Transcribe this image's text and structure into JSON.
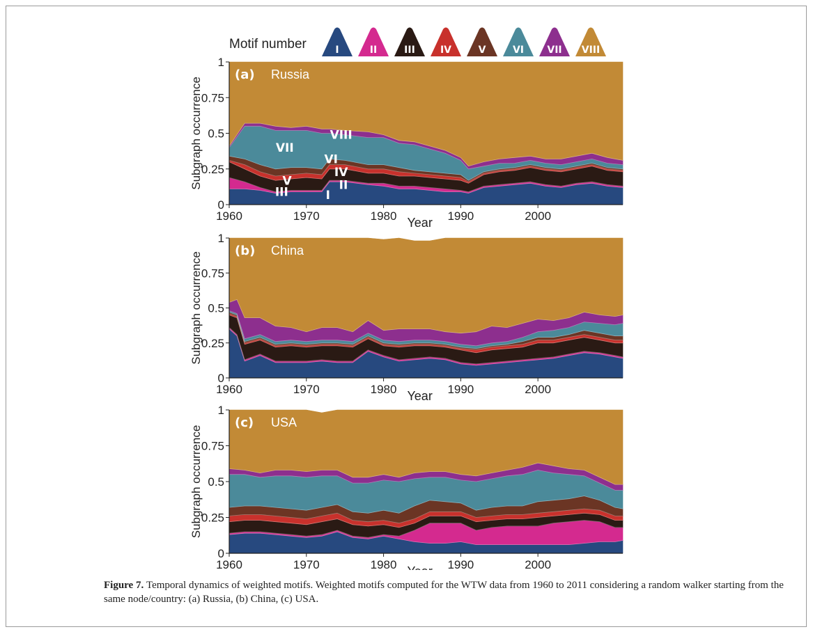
{
  "legend": {
    "title": "Motif number",
    "entries": [
      {
        "id": "I",
        "color": "#27497f"
      },
      {
        "id": "II",
        "color": "#d42a8f"
      },
      {
        "id": "III",
        "color": "#2a1a14"
      },
      {
        "id": "IV",
        "color": "#c8312c"
      },
      {
        "id": "V",
        "color": "#6b3524"
      },
      {
        "id": "VI",
        "color": "#4b8a9a"
      },
      {
        "id": "VII",
        "color": "#8d2f8e"
      },
      {
        "id": "VIII",
        "color": "#c28a36"
      }
    ]
  },
  "chart_data": [
    {
      "type": "area",
      "stacked": true,
      "panel_label": "(a)",
      "country": "Russia",
      "xlabel": "Year",
      "ylabel": "Subgraph occurrence",
      "xlim": [
        1960,
        2011
      ],
      "ylim": [
        0,
        1
      ],
      "xticks": [
        "1960",
        "1970",
        "1980",
        "1990",
        "2000"
      ],
      "yticks": [
        "0",
        "0.25",
        "0.5",
        "0.75",
        "1"
      ],
      "x": [
        1960,
        1962,
        1964,
        1966,
        1968,
        1970,
        1972,
        1973,
        1975,
        1978,
        1980,
        1982,
        1984,
        1986,
        1988,
        1990,
        1991,
        1993,
        1995,
        1997,
        1999,
        2001,
        2003,
        2005,
        2007,
        2009,
        2011
      ],
      "annotations": [
        "VIII",
        "VII",
        "VI",
        "IV",
        "V",
        "II",
        "III",
        "I"
      ],
      "series": [
        {
          "name": "I",
          "values": [
            0.11,
            0.11,
            0.1,
            0.08,
            0.09,
            0.09,
            0.09,
            0.16,
            0.16,
            0.14,
            0.13,
            0.11,
            0.11,
            0.1,
            0.09,
            0.09,
            0.08,
            0.12,
            0.13,
            0.14,
            0.15,
            0.13,
            0.12,
            0.14,
            0.15,
            0.13,
            0.12
          ]
        },
        {
          "name": "II",
          "values": [
            0.08,
            0.05,
            0.02,
            0.01,
            0.01,
            0.01,
            0.01,
            0.01,
            0.01,
            0.01,
            0.02,
            0.02,
            0.02,
            0.02,
            0.02,
            0.01,
            0.01,
            0.01,
            0.01,
            0.01,
            0.01,
            0.01,
            0.01,
            0.01,
            0.01,
            0.01,
            0.01
          ]
        },
        {
          "name": "III",
          "values": [
            0.11,
            0.09,
            0.08,
            0.08,
            0.08,
            0.09,
            0.08,
            0.08,
            0.08,
            0.07,
            0.07,
            0.07,
            0.07,
            0.07,
            0.07,
            0.07,
            0.06,
            0.08,
            0.09,
            0.09,
            0.1,
            0.1,
            0.1,
            0.1,
            0.11,
            0.1,
            0.1
          ]
        },
        {
          "name": "IV",
          "values": [
            0.01,
            0.03,
            0.03,
            0.03,
            0.03,
            0.03,
            0.03,
            0.03,
            0.03,
            0.03,
            0.03,
            0.03,
            0.02,
            0.02,
            0.02,
            0.02,
            0.01,
            0.01,
            0.01,
            0.01,
            0.01,
            0.01,
            0.01,
            0.01,
            0.01,
            0.01,
            0.01
          ]
        },
        {
          "name": "V",
          "values": [
            0.03,
            0.04,
            0.05,
            0.05,
            0.05,
            0.04,
            0.04,
            0.04,
            0.03,
            0.03,
            0.03,
            0.03,
            0.02,
            0.02,
            0.02,
            0.02,
            0.01,
            0.01,
            0.01,
            0.01,
            0.01,
            0.01,
            0.01,
            0.01,
            0.01,
            0.01,
            0.01
          ]
        },
        {
          "name": "VI",
          "values": [
            0.06,
            0.23,
            0.27,
            0.27,
            0.26,
            0.26,
            0.25,
            0.18,
            0.18,
            0.19,
            0.19,
            0.17,
            0.18,
            0.16,
            0.14,
            0.1,
            0.08,
            0.04,
            0.04,
            0.03,
            0.03,
            0.03,
            0.03,
            0.03,
            0.03,
            0.03,
            0.03
          ]
        },
        {
          "name": "VII",
          "values": [
            0.01,
            0.02,
            0.02,
            0.03,
            0.02,
            0.03,
            0.03,
            0.03,
            0.03,
            0.04,
            0.02,
            0.02,
            0.02,
            0.02,
            0.02,
            0.02,
            0.02,
            0.03,
            0.03,
            0.04,
            0.03,
            0.03,
            0.04,
            0.04,
            0.04,
            0.04,
            0.03
          ]
        },
        {
          "name": "VIII",
          "values": [
            0.59,
            0.43,
            0.43,
            0.45,
            0.46,
            0.45,
            0.47,
            0.47,
            0.48,
            0.49,
            0.51,
            0.55,
            0.56,
            0.59,
            0.62,
            0.67,
            0.73,
            0.7,
            0.68,
            0.67,
            0.66,
            0.68,
            0.68,
            0.66,
            0.64,
            0.67,
            0.69
          ]
        }
      ]
    },
    {
      "type": "area",
      "stacked": true,
      "panel_label": "(b)",
      "country": "China",
      "xlabel": "Year",
      "ylabel": "Subgraph occurrence",
      "xlim": [
        1960,
        2011
      ],
      "ylim": [
        0,
        1
      ],
      "xticks": [
        "1960",
        "1970",
        "1980",
        "1990",
        "2000"
      ],
      "yticks": [
        "0",
        "0.25",
        "0.5",
        "0.75",
        "1"
      ],
      "x": [
        1960,
        1961,
        1962,
        1964,
        1966,
        1968,
        1970,
        1972,
        1974,
        1976,
        1978,
        1980,
        1982,
        1984,
        1986,
        1988,
        1990,
        1992,
        1994,
        1996,
        1998,
        2000,
        2002,
        2004,
        2006,
        2008,
        2010,
        2011
      ],
      "series": [
        {
          "name": "I",
          "values": [
            0.35,
            0.3,
            0.12,
            0.16,
            0.11,
            0.11,
            0.11,
            0.12,
            0.11,
            0.11,
            0.19,
            0.15,
            0.12,
            0.13,
            0.14,
            0.13,
            0.1,
            0.09,
            0.1,
            0.11,
            0.12,
            0.13,
            0.14,
            0.16,
            0.18,
            0.17,
            0.15,
            0.14
          ]
        },
        {
          "name": "II",
          "values": [
            0.01,
            0.01,
            0.01,
            0.01,
            0.01,
            0.01,
            0.01,
            0.01,
            0.01,
            0.01,
            0.01,
            0.01,
            0.01,
            0.01,
            0.01,
            0.01,
            0.01,
            0.01,
            0.01,
            0.01,
            0.01,
            0.01,
            0.01,
            0.01,
            0.01,
            0.01,
            0.01,
            0.01
          ]
        },
        {
          "name": "III",
          "values": [
            0.09,
            0.12,
            0.11,
            0.1,
            0.1,
            0.11,
            0.1,
            0.1,
            0.11,
            0.1,
            0.08,
            0.07,
            0.09,
            0.09,
            0.08,
            0.08,
            0.09,
            0.08,
            0.09,
            0.09,
            0.09,
            0.11,
            0.1,
            0.1,
            0.1,
            0.09,
            0.09,
            0.1
          ]
        },
        {
          "name": "IV",
          "values": [
            0.01,
            0.01,
            0.01,
            0.01,
            0.01,
            0.01,
            0.01,
            0.01,
            0.01,
            0.01,
            0.01,
            0.01,
            0.01,
            0.01,
            0.01,
            0.01,
            0.01,
            0.02,
            0.02,
            0.02,
            0.02,
            0.02,
            0.02,
            0.02,
            0.02,
            0.02,
            0.02,
            0.02
          ]
        },
        {
          "name": "V",
          "values": [
            0.01,
            0.01,
            0.01,
            0.01,
            0.01,
            0.01,
            0.01,
            0.01,
            0.01,
            0.01,
            0.01,
            0.01,
            0.01,
            0.01,
            0.01,
            0.01,
            0.01,
            0.01,
            0.01,
            0.01,
            0.02,
            0.02,
            0.02,
            0.02,
            0.03,
            0.03,
            0.03,
            0.03
          ]
        },
        {
          "name": "VI",
          "values": [
            0.01,
            0.01,
            0.02,
            0.02,
            0.02,
            0.02,
            0.02,
            0.02,
            0.02,
            0.02,
            0.02,
            0.02,
            0.02,
            0.02,
            0.02,
            0.02,
            0.02,
            0.02,
            0.02,
            0.02,
            0.03,
            0.04,
            0.05,
            0.05,
            0.06,
            0.07,
            0.08,
            0.09
          ]
        },
        {
          "name": "VII",
          "values": [
            0.06,
            0.1,
            0.15,
            0.12,
            0.11,
            0.09,
            0.07,
            0.09,
            0.09,
            0.07,
            0.09,
            0.07,
            0.09,
            0.08,
            0.08,
            0.07,
            0.08,
            0.1,
            0.12,
            0.1,
            0.1,
            0.09,
            0.07,
            0.07,
            0.07,
            0.06,
            0.06,
            0.06
          ]
        },
        {
          "name": "VIII",
          "values": [
            0.46,
            0.44,
            0.57,
            0.57,
            0.63,
            0.64,
            0.67,
            0.64,
            0.64,
            0.67,
            0.59,
            0.65,
            0.65,
            0.63,
            0.63,
            0.67,
            0.68,
            0.67,
            0.63,
            0.64,
            0.61,
            0.58,
            0.59,
            0.57,
            0.53,
            0.55,
            0.56,
            0.55
          ]
        }
      ]
    },
    {
      "type": "area",
      "stacked": true,
      "panel_label": "(c)",
      "country": "USA",
      "xlabel": "Year",
      "ylabel": "Subgraph occurrence",
      "xlim": [
        1960,
        2011
      ],
      "ylim": [
        0,
        1
      ],
      "xticks": [
        "1960",
        "1970",
        "1980",
        "1990",
        "2000"
      ],
      "yticks": [
        "0",
        "0.25",
        "0.5",
        "0.75",
        "1"
      ],
      "x": [
        1960,
        1962,
        1964,
        1966,
        1968,
        1970,
        1972,
        1974,
        1976,
        1978,
        1980,
        1982,
        1984,
        1986,
        1988,
        1990,
        1992,
        1994,
        1996,
        1998,
        2000,
        2002,
        2004,
        2006,
        2008,
        2010,
        2011
      ],
      "series": [
        {
          "name": "I",
          "values": [
            0.13,
            0.14,
            0.14,
            0.13,
            0.12,
            0.11,
            0.12,
            0.15,
            0.11,
            0.1,
            0.12,
            0.1,
            0.08,
            0.07,
            0.07,
            0.08,
            0.06,
            0.06,
            0.06,
            0.06,
            0.06,
            0.06,
            0.06,
            0.07,
            0.08,
            0.08,
            0.09
          ]
        },
        {
          "name": "II",
          "values": [
            0.01,
            0.01,
            0.01,
            0.01,
            0.01,
            0.01,
            0.01,
            0.01,
            0.01,
            0.01,
            0.01,
            0.02,
            0.08,
            0.14,
            0.14,
            0.13,
            0.1,
            0.12,
            0.13,
            0.13,
            0.13,
            0.15,
            0.16,
            0.16,
            0.14,
            0.1,
            0.09
          ]
        },
        {
          "name": "III",
          "values": [
            0.08,
            0.08,
            0.08,
            0.08,
            0.08,
            0.08,
            0.09,
            0.08,
            0.08,
            0.08,
            0.07,
            0.06,
            0.05,
            0.05,
            0.05,
            0.05,
            0.06,
            0.05,
            0.05,
            0.05,
            0.06,
            0.05,
            0.05,
            0.05,
            0.05,
            0.05,
            0.05
          ]
        },
        {
          "name": "IV",
          "values": [
            0.04,
            0.04,
            0.04,
            0.04,
            0.04,
            0.04,
            0.04,
            0.04,
            0.03,
            0.03,
            0.03,
            0.03,
            0.03,
            0.03,
            0.03,
            0.03,
            0.03,
            0.03,
            0.03,
            0.03,
            0.03,
            0.03,
            0.03,
            0.03,
            0.03,
            0.03,
            0.03
          ]
        },
        {
          "name": "V",
          "values": [
            0.06,
            0.06,
            0.06,
            0.06,
            0.06,
            0.06,
            0.06,
            0.06,
            0.06,
            0.06,
            0.07,
            0.07,
            0.09,
            0.08,
            0.07,
            0.06,
            0.05,
            0.06,
            0.06,
            0.06,
            0.08,
            0.08,
            0.08,
            0.09,
            0.07,
            0.06,
            0.05
          ]
        },
        {
          "name": "VI",
          "values": [
            0.23,
            0.22,
            0.2,
            0.22,
            0.23,
            0.23,
            0.22,
            0.2,
            0.2,
            0.21,
            0.21,
            0.22,
            0.19,
            0.16,
            0.17,
            0.16,
            0.2,
            0.2,
            0.21,
            0.22,
            0.22,
            0.19,
            0.17,
            0.14,
            0.12,
            0.12,
            0.13
          ]
        },
        {
          "name": "VII",
          "values": [
            0.04,
            0.03,
            0.03,
            0.04,
            0.04,
            0.04,
            0.04,
            0.04,
            0.04,
            0.04,
            0.04,
            0.03,
            0.04,
            0.04,
            0.04,
            0.04,
            0.04,
            0.04,
            0.04,
            0.05,
            0.05,
            0.05,
            0.04,
            0.04,
            0.04,
            0.04,
            0.04
          ]
        },
        {
          "name": "VIII",
          "values": [
            0.41,
            0.42,
            0.44,
            0.42,
            0.42,
            0.43,
            0.4,
            0.42,
            0.47,
            0.47,
            0.45,
            0.47,
            0.44,
            0.43,
            0.43,
            0.45,
            0.46,
            0.44,
            0.42,
            0.4,
            0.37,
            0.39,
            0.41,
            0.42,
            0.47,
            0.52,
            0.52
          ]
        }
      ]
    }
  ],
  "caption": {
    "label": "Figure 7.",
    "text": "Temporal dynamics of weighted motifs. Weighted motifs computed for the WTW data from 1960 to 2011 considering a random walker starting from the same node/country: (a) Russia, (b) China, (c) USA."
  }
}
